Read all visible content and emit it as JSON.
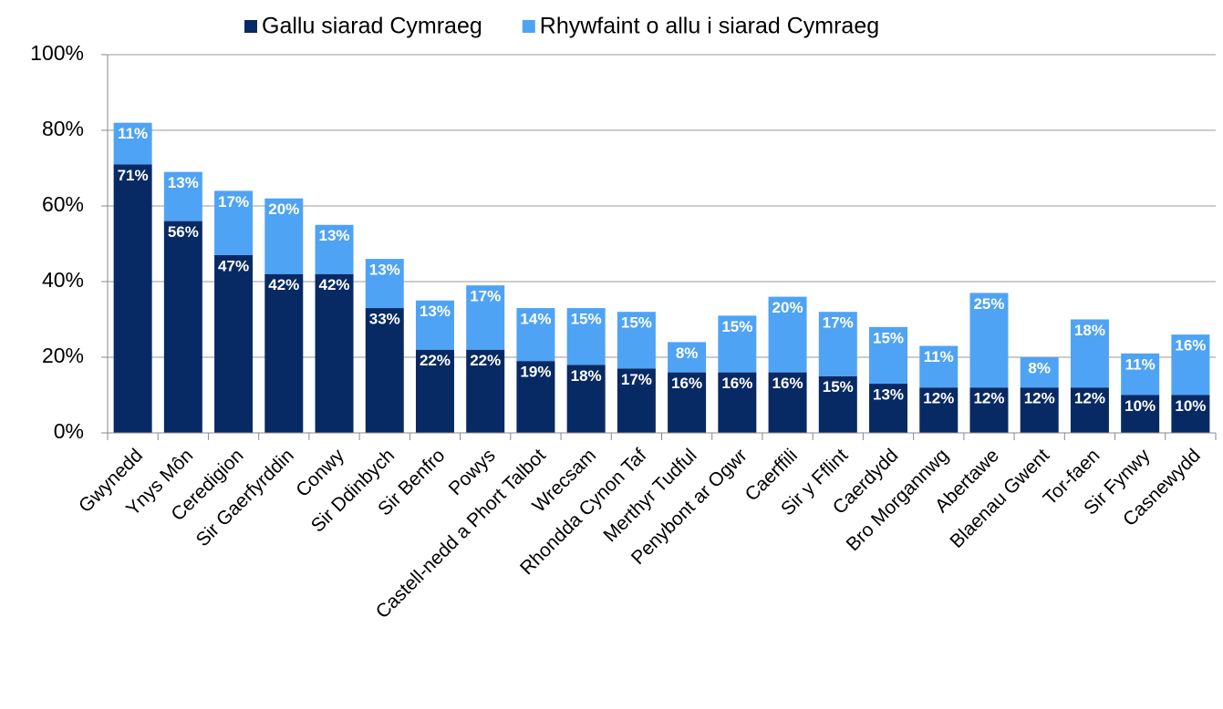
{
  "chart_data": {
    "type": "stacked_bar",
    "categories": [
      "Gwynedd",
      "Ynys Môn",
      "Ceredigion",
      "Sir Gaerfyrddin",
      "Conwy",
      "Sir Ddinbych",
      "Sir Benfro",
      "Powys",
      "Castell-nedd a Phort Talbot",
      "Wrecsam",
      "Rhondda Cynon Taf",
      "Merthyr Tudful",
      "Penybont ar Ogwr",
      "Caerffili",
      "Sir y Fflint",
      "Caerdydd",
      "Bro Morgannwg",
      "Abertawe",
      "Blaenau Gwent",
      "Tor-faen",
      "Sir Fynwy",
      "Casnewydd"
    ],
    "series": [
      {
        "name": "Gallu siarad Cymraeg",
        "color": "#082a64",
        "values": [
          71,
          56,
          47,
          42,
          42,
          33,
          22,
          22,
          19,
          18,
          17,
          16,
          16,
          16,
          15,
          13,
          12,
          12,
          12,
          12,
          10,
          10
        ],
        "value_labels": [
          "71%",
          "56%",
          "47%",
          "42%",
          "42%",
          "33%",
          "22%",
          "22%",
          "19%",
          "18%",
          "17%",
          "16%",
          "16%",
          "16%",
          "15%",
          "13%",
          "12%",
          "12%",
          "12%",
          "12%",
          "10%",
          "10%"
        ]
      },
      {
        "name": "Rhywfaint o allu i siarad Cymraeg",
        "color": "#4fa3f5",
        "values": [
          11,
          13,
          17,
          20,
          13,
          13,
          13,
          17,
          14,
          15,
          15,
          8,
          15,
          20,
          17,
          15,
          11,
          25,
          8,
          18,
          11,
          16
        ],
        "value_labels": [
          "11%",
          "13%",
          "17%",
          "20%",
          "13%",
          "13%",
          "13%",
          "17%",
          "14%",
          "15%",
          "15%",
          "8%",
          "15%",
          "20%",
          "17%",
          "15%",
          "11%",
          "25%",
          "8%",
          "18%",
          "11%",
          "16%"
        ]
      }
    ],
    "ylim": [
      0,
      100
    ],
    "yticks": [
      {
        "value": 0,
        "label": "0%"
      },
      {
        "value": 20,
        "label": "20%"
      },
      {
        "value": 40,
        "label": "40%"
      },
      {
        "value": 60,
        "label": "60%"
      },
      {
        "value": 80,
        "label": "80%"
      },
      {
        "value": 100,
        "label": "100%"
      }
    ],
    "grid": true,
    "legend": "top"
  }
}
